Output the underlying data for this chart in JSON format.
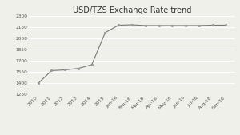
{
  "title": "USD/TZS Exchange Rate trend",
  "labels": [
    "2010",
    "2011",
    "2012",
    "2013",
    "2014",
    "2015",
    "Jan-16",
    "Feb-16",
    "Mar-16",
    "Apr-16",
    "May-16",
    "Jun-16",
    "Jul-16",
    "Aug-16",
    "Sep-16"
  ],
  "values": [
    1400,
    1570,
    1580,
    1600,
    1650,
    2080,
    2180,
    2185,
    2175,
    2175,
    2175,
    2175,
    2175,
    2180,
    2180
  ],
  "ylim": [
    1250,
    2300
  ],
  "yticks": [
    1250,
    1400,
    1550,
    1700,
    1850,
    2000,
    2150,
    2300
  ],
  "line_color": "#777777",
  "marker_color": "#999999",
  "bg_color": "#f0f0eb",
  "grid_color": "#ffffff",
  "title_fontsize": 7,
  "tick_fontsize": 4.2,
  "figsize": [
    3.0,
    1.69
  ],
  "dpi": 100
}
